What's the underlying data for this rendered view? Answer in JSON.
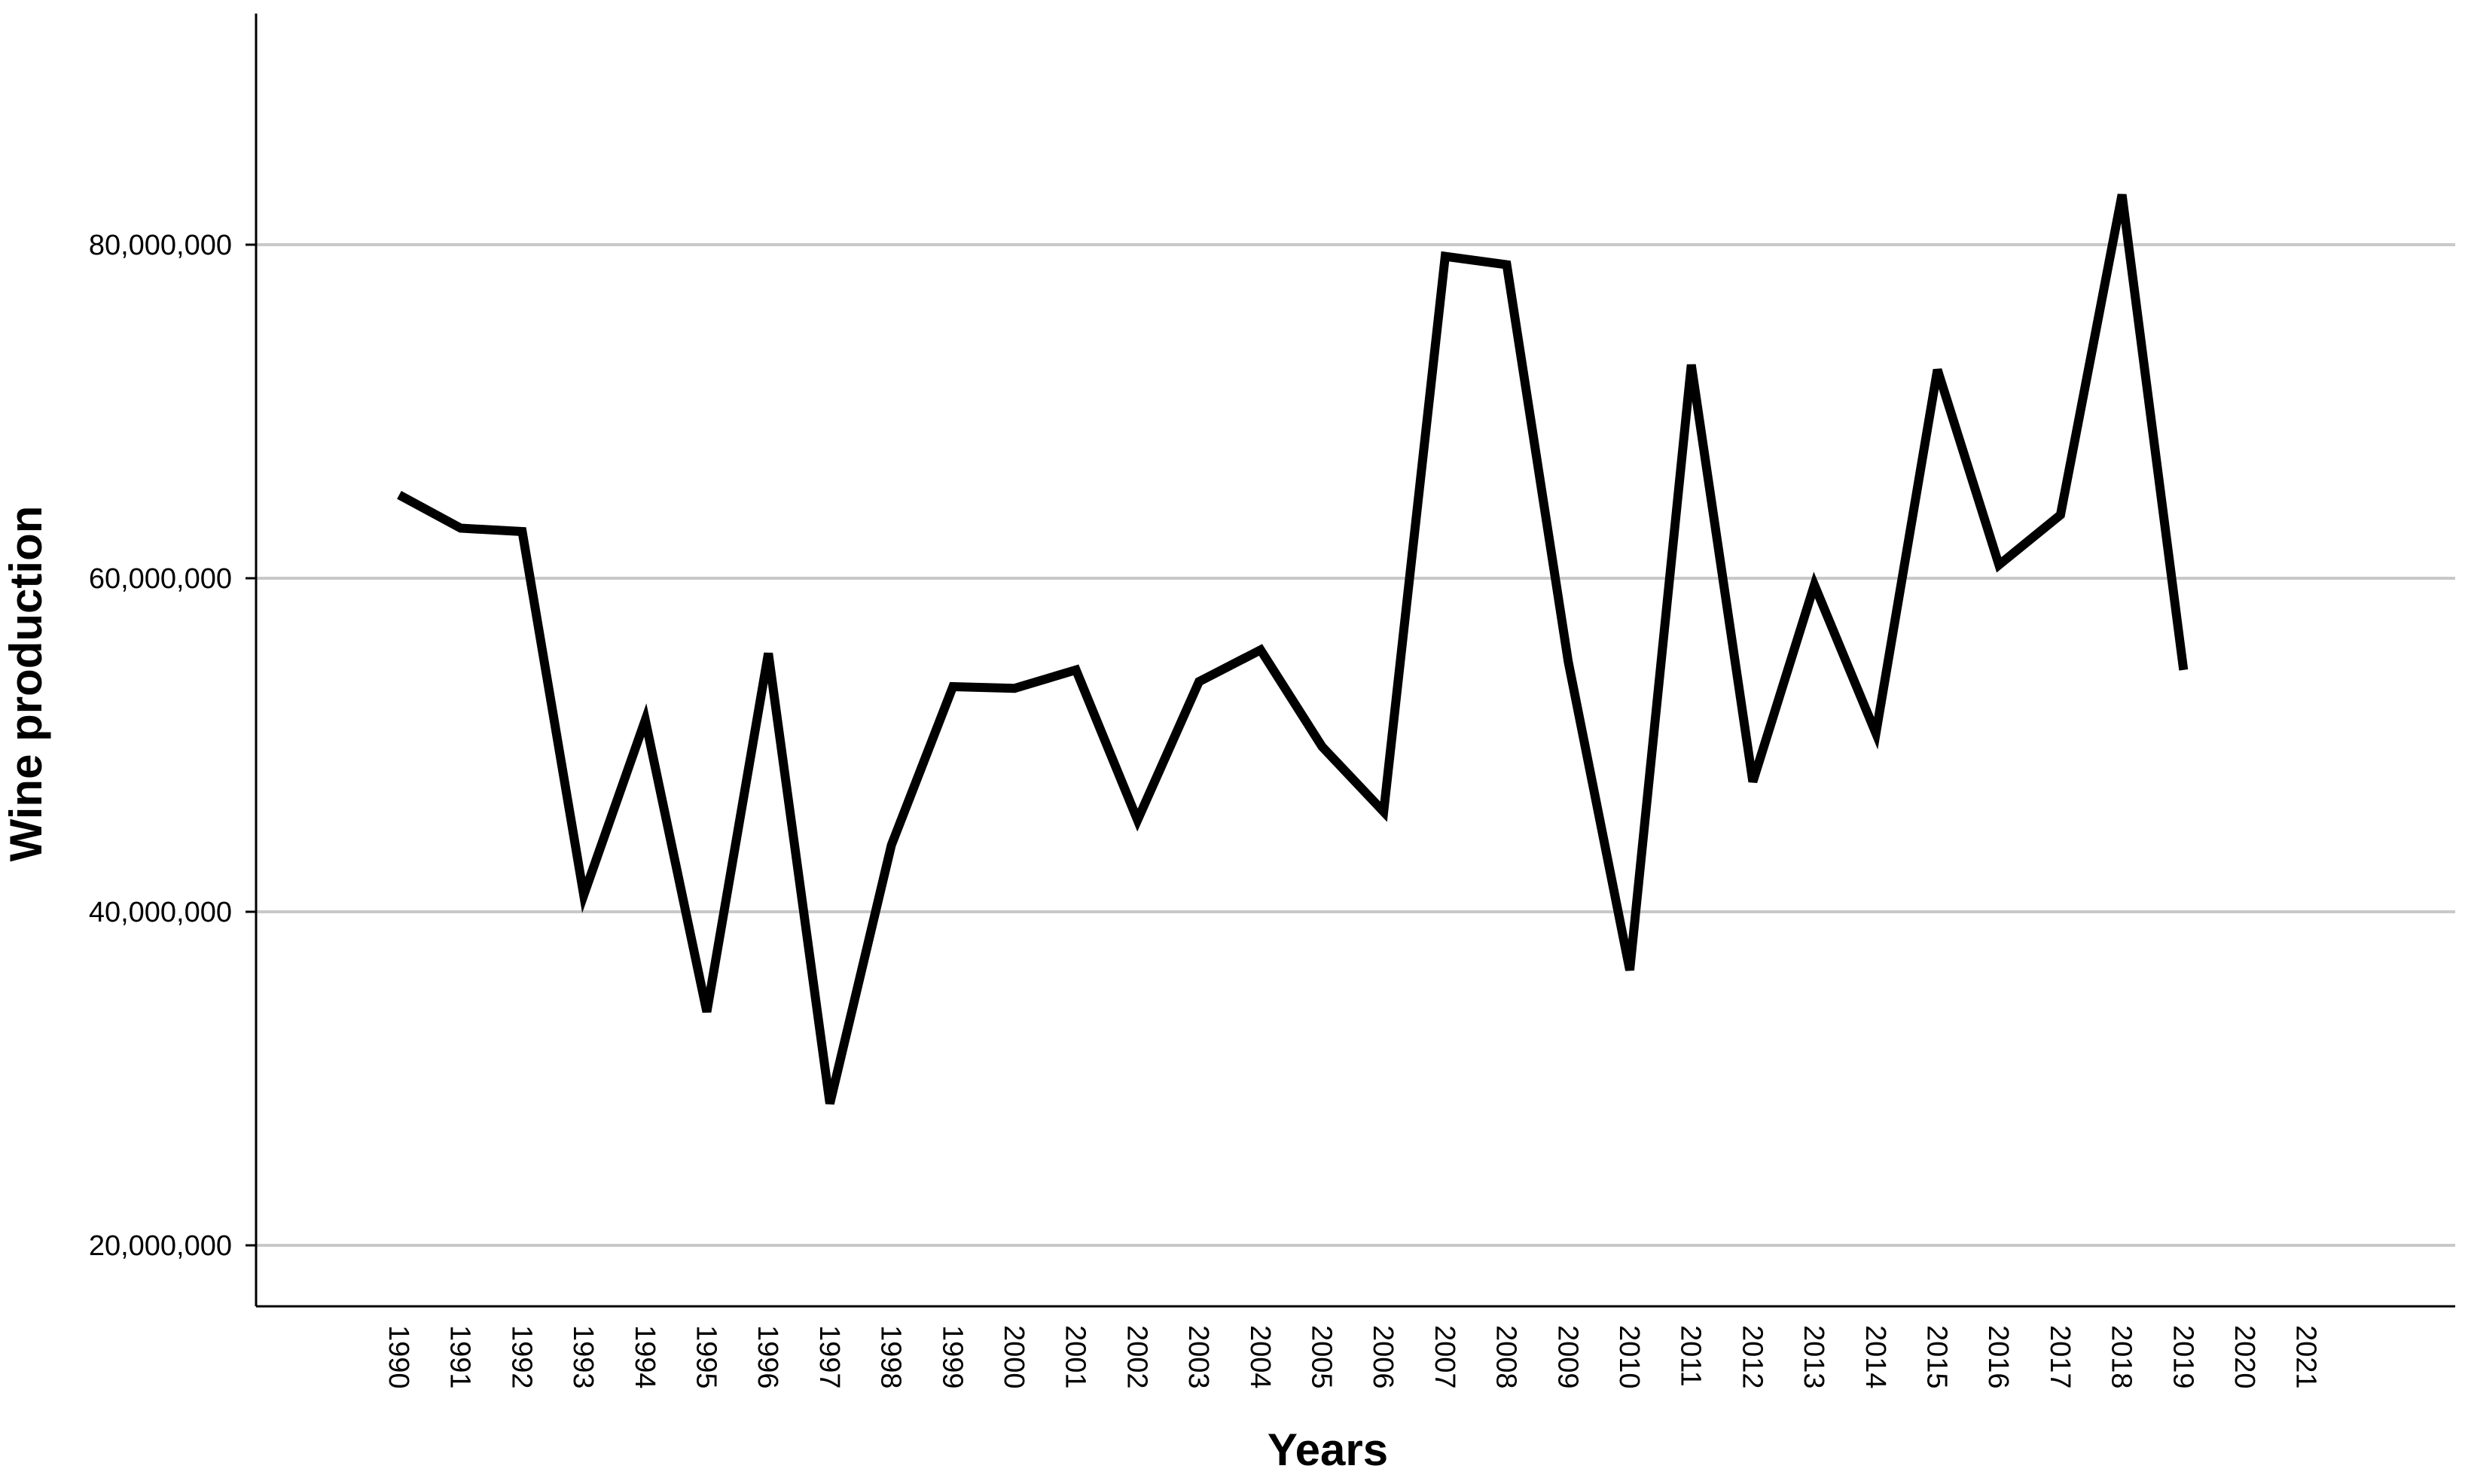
{
  "chart_data": {
    "type": "line",
    "title": "",
    "xlabel": "Years",
    "ylabel": "Wine production",
    "x": [
      "1990",
      "1991",
      "1992",
      "1993",
      "1994",
      "1995",
      "1996",
      "1997",
      "1998",
      "1999",
      "2000",
      "2001",
      "2002",
      "2003",
      "2004",
      "2005",
      "2006",
      "2007",
      "2008",
      "2009",
      "2010",
      "2011",
      "2012",
      "2013",
      "2014",
      "2015",
      "2016",
      "2017",
      "2018",
      "2019",
      "2020",
      "2021"
    ],
    "series": [
      {
        "values": [
          65000000,
          63000000,
          62800000,
          41000000,
          51500000,
          34000000,
          55500000,
          28500000,
          44000000,
          53500000,
          53400000,
          54500000,
          45500000,
          53800000,
          55700000,
          49900000,
          46000000,
          79300000,
          78800000,
          55000000,
          36500000,
          72800000,
          47800000,
          59600000,
          50700000,
          72500000,
          60800000,
          63800000,
          83000000,
          54500000,
          null,
          null
        ]
      }
    ],
    "y_ticks": [
      "20,000,000",
      "40,000,000",
      "60,000,000",
      "80,000,000"
    ],
    "y_tick_values": [
      20000000,
      40000000,
      60000000,
      80000000
    ],
    "ylim": [
      16000000,
      94000000
    ],
    "grid": "horizontal",
    "line_color": "#000000",
    "grid_color": "#c8c8c8"
  }
}
